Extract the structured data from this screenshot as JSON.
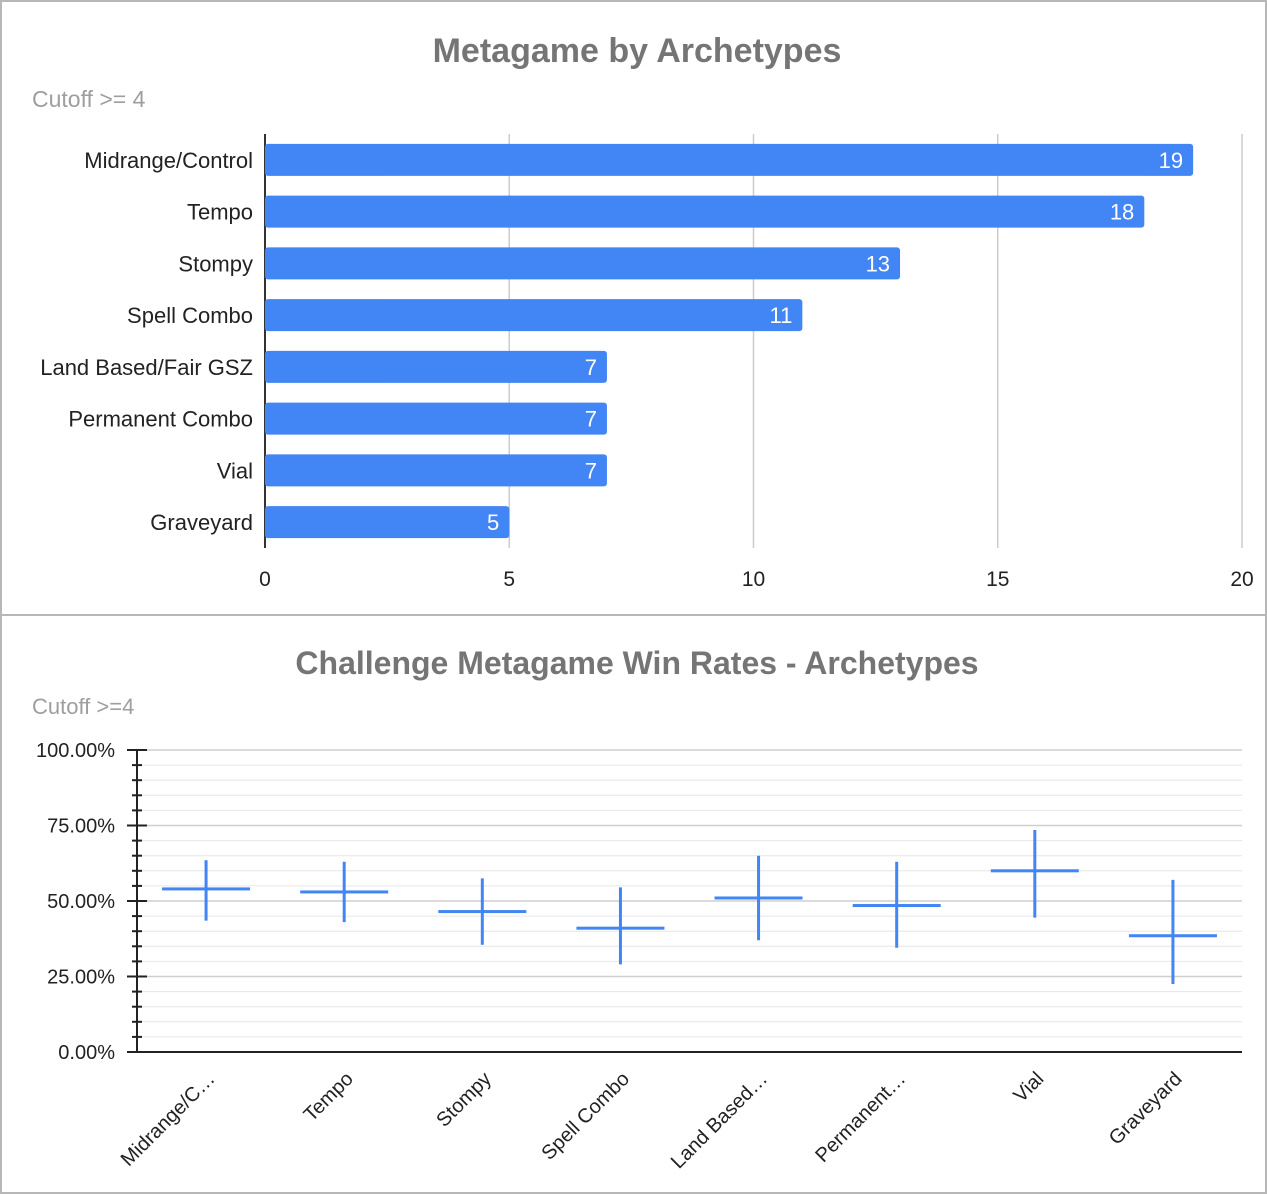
{
  "charts": {
    "top": {
      "title": "Metagame by Archetypes",
      "subtitle": "Cutoff >= 4"
    },
    "bottom": {
      "title": "Challenge Metagame Win Rates - Archetypes",
      "subtitle": "Cutoff >=4"
    }
  },
  "chart_data": [
    {
      "type": "bar",
      "orientation": "horizontal",
      "title": "Metagame by Archetypes",
      "subtitle": "Cutoff >= 4",
      "categories": [
        "Midrange/Control",
        "Tempo",
        "Stompy",
        "Spell Combo",
        "Land Based/Fair GSZ",
        "Permanent Combo",
        "Vial",
        "Graveyard"
      ],
      "values": [
        19,
        18,
        13,
        11,
        7,
        7,
        7,
        5
      ],
      "data_labels": [
        "19",
        "18",
        "13",
        "11",
        "7",
        "7",
        "7",
        "5"
      ],
      "xlim": [
        0,
        20
      ],
      "xticks": [
        "0",
        "5",
        "10",
        "15",
        "20"
      ],
      "grid": true,
      "color": "#4285f4"
    },
    {
      "type": "candlestick",
      "title": "Challenge Metagame Win Rates - Archetypes",
      "subtitle": "Cutoff >=4",
      "categories": [
        "Midrange/C…",
        "Tempo",
        "Stompy",
        "Spell Combo",
        "Land Based…",
        "Permanent…",
        "Vial",
        "Graveyard"
      ],
      "low": [
        43.5,
        43,
        35.5,
        29,
        37,
        34.5,
        44.5,
        22.5
      ],
      "open": [
        53.5,
        52.5,
        46.5,
        41,
        51,
        48.5,
        59.5,
        38.5
      ],
      "close": [
        54,
        53.5,
        46.5,
        41,
        51,
        48.5,
        60.5,
        38.5
      ],
      "high": [
        63.5,
        63,
        57.5,
        54.5,
        65,
        63,
        73.5,
        57
      ],
      "ylim": [
        0,
        100
      ],
      "yticks": [
        "0.00%",
        "25.00%",
        "50.00%",
        "75.00%",
        "100.00%"
      ],
      "grid": true,
      "color": "#4285f4"
    }
  ]
}
